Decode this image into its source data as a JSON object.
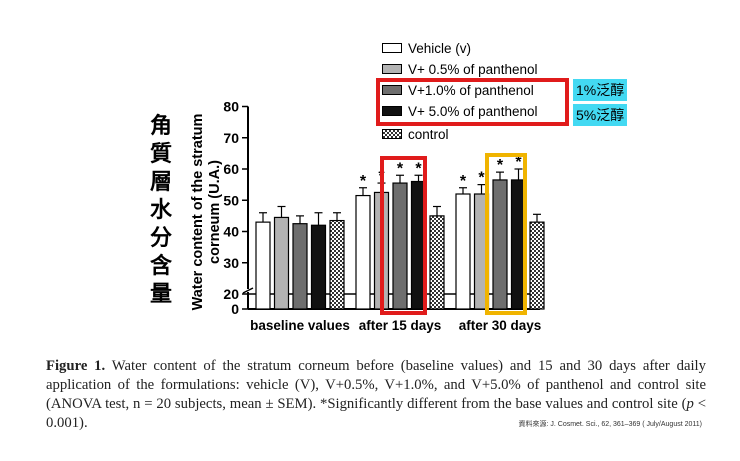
{
  "chart_data": {
    "type": "bar",
    "ylabel": "Water content of the stratum corneum (U.A.)",
    "ylim": [
      0,
      80
    ],
    "y_ticks": [
      0,
      20,
      30,
      40,
      50,
      60,
      70,
      80
    ],
    "axis_break": [
      0,
      20
    ],
    "categories": [
      "baseline values",
      "after 15 days",
      "after 30 days"
    ],
    "series": [
      {
        "name": "Vehicle (v)",
        "fill": "#ffffff",
        "values": [
          43,
          51.5,
          52
        ],
        "errors": [
          3,
          2.5,
          2
        ],
        "significant": [
          false,
          true,
          true
        ]
      },
      {
        "name": "V+ 0.5% of panthenol",
        "fill": "#b3b3b3",
        "values": [
          44.5,
          52.5,
          52
        ],
        "errors": [
          3.5,
          3,
          3
        ],
        "significant": [
          false,
          true,
          true
        ]
      },
      {
        "name": "V+1.0% of panthenol",
        "fill": "#6e6e6e",
        "values": [
          42.5,
          55.5,
          56.5
        ],
        "errors": [
          2.5,
          2.5,
          2.5
        ],
        "significant": [
          false,
          true,
          true
        ]
      },
      {
        "name": "V+ 5.0% of panthenol",
        "fill": "#111111",
        "values": [
          42,
          56,
          56.5
        ],
        "errors": [
          4,
          2,
          3.5
        ],
        "significant": [
          false,
          true,
          true
        ]
      },
      {
        "name": "control",
        "fill": "checker",
        "values": [
          43.5,
          45,
          43
        ],
        "errors": [
          2.5,
          3,
          2.5
        ],
        "significant": [
          false,
          false,
          false
        ]
      }
    ],
    "significance_marker": "*"
  },
  "annotations": {
    "cjk_title": "角質層水分含量",
    "tag_1": "1%泛醇",
    "tag_5": "5%泛醇",
    "highlight_colors": {
      "red": "#e01b1b",
      "gold": "#f0b400"
    },
    "tag_color": "#43d9f2"
  },
  "caption": {
    "label": "Figure 1.",
    "text": "Water content of the stratum corneum before (baseline values) and 15 and 30 days after daily application of the formulations: vehicle (V), V+0.5%, V+1.0%, and V+5.0% of panthenol and control site (ANOVA test, n = 20 subjects, mean ± SEM). *Significantly different from the base values and control site (",
    "p_symbol": "p",
    "text_end": " < 0.001)."
  },
  "source": "資料來源: J. Cosmet. Sci., 62, 361–369 ( July/August 2011)"
}
